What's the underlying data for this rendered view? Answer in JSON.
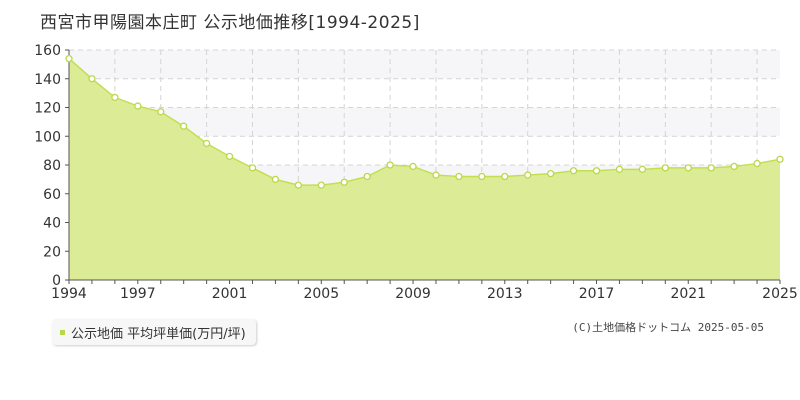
{
  "page": {
    "title": "西宮市甲陽園本庄町 公示地価推移[1994-2025]",
    "credit": "(C)土地価格ドットコム 2025-05-05"
  },
  "colors": {
    "fill": "#dcec96",
    "line": "#c4de54",
    "marker_fill": "#ffffff",
    "marker_stroke": "#b9d84a",
    "legend_swatch": "#b9d84a"
  },
  "chart_data": {
    "type": "area",
    "title": "西宮市甲陽園本庄町 公示地価推移[1994-2025]",
    "xlabel": "",
    "ylabel": "",
    "xlim": [
      1994,
      2025
    ],
    "ylim": [
      0,
      160
    ],
    "yticks": [
      0,
      20,
      40,
      60,
      80,
      100,
      120,
      140,
      160
    ],
    "xticks": [
      1994,
      1997,
      2001,
      2005,
      2009,
      2013,
      2017,
      2021,
      2025
    ],
    "grid": true,
    "legend_position": "bottom-left",
    "series": [
      {
        "name": "公示地価 平均坪単価(万円/坪)",
        "x": [
          1994,
          1995,
          1996,
          1997,
          1998,
          1999,
          2000,
          2001,
          2002,
          2003,
          2004,
          2005,
          2006,
          2007,
          2008,
          2009,
          2010,
          2011,
          2012,
          2013,
          2014,
          2015,
          2016,
          2017,
          2018,
          2019,
          2020,
          2021,
          2022,
          2023,
          2024,
          2025
        ],
        "values": [
          154,
          140,
          127,
          121,
          117,
          107,
          95,
          86,
          78,
          70,
          66,
          66,
          68,
          72,
          80,
          79,
          73,
          72,
          72,
          72,
          73,
          74,
          76,
          76,
          77,
          77,
          78,
          78,
          78,
          79,
          81,
          84
        ]
      }
    ]
  }
}
